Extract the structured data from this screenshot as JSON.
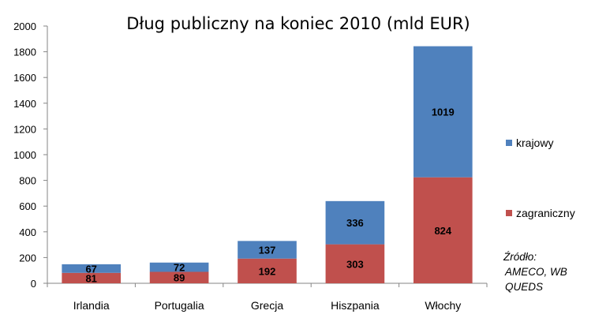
{
  "chart_data": {
    "type": "bar",
    "stacked": true,
    "title": "Dług publiczny na koniec 2010 (mld EUR)",
    "categories": [
      "Irlandia",
      "Portugalia",
      "Grecja",
      "Hiszpania",
      "Włochy"
    ],
    "series": [
      {
        "name": "zagraniczny",
        "values": [
          81,
          89,
          192,
          303,
          824
        ],
        "color": "#C0504D"
      },
      {
        "name": "krajowy",
        "values": [
          67,
          72,
          137,
          336,
          1019
        ],
        "color": "#4F81BD"
      }
    ],
    "ylim": [
      0,
      2000
    ],
    "yticks": [
      "0",
      "200",
      "400",
      "600",
      "800",
      "1000",
      "1200",
      "1400",
      "1600",
      "1800",
      "2000"
    ],
    "legend_position": "right",
    "grid": false
  },
  "source_note": {
    "line1": "Źródło:",
    "line2": "AMECO, WB",
    "line3": "QUEDS"
  }
}
